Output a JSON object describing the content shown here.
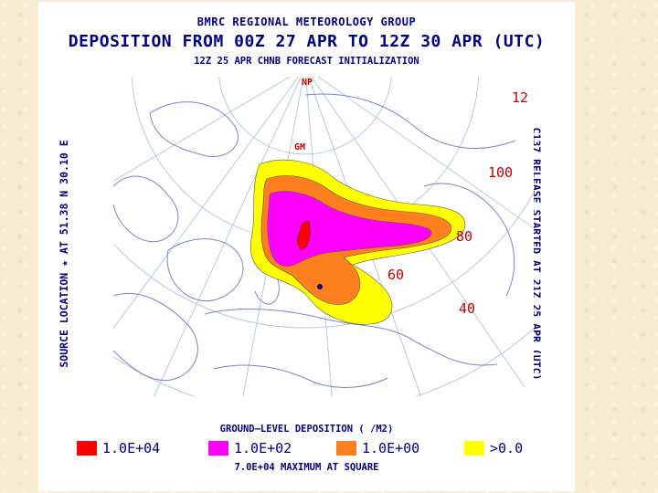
{
  "header": {
    "line1": "BMRC REGIONAL METEOROLOGY GROUP",
    "line2": "DEPOSITION FROM 00Z 27 APR TO 12Z 30 APR (UTC)",
    "line3": "12Z 25 APR  CHNB FORECAST INITIALIZATION"
  },
  "side_left": "SOURCE LOCATION  ★  AT  51.38 N   30.10 E",
  "side_right": "C137 RELEASE STARTED AT 21Z 25 APR (UTC)",
  "map": {
    "pole_label": "NP",
    "gm_label": "GM",
    "lat_labels": [
      "12",
      "100",
      "80",
      "60",
      "40"
    ],
    "colors": {
      "land": "#7f7fd1",
      "grid": "#b8c8dd",
      "level_1e4": "#ff0000",
      "level_1e2": "#ff00ff",
      "level_1e0": "#ff7f1f",
      "level_gt0": "#ffff00",
      "label_red": "#c00000"
    }
  },
  "legend": {
    "title": "GROUND–LEVEL DEPOSITION ( /M2)",
    "items": [
      {
        "label": "1.0E+04",
        "color": "#ff0000"
      },
      {
        "label": "1.0E+02",
        "color": "#ff00ff"
      },
      {
        "label": "1.0E+00",
        "color": "#ff7f1f"
      },
      {
        "label": ">0.0",
        "color": "#ffff00"
      }
    ]
  },
  "footer": "7.0E+04 MAXIMUM AT SQUARE"
}
